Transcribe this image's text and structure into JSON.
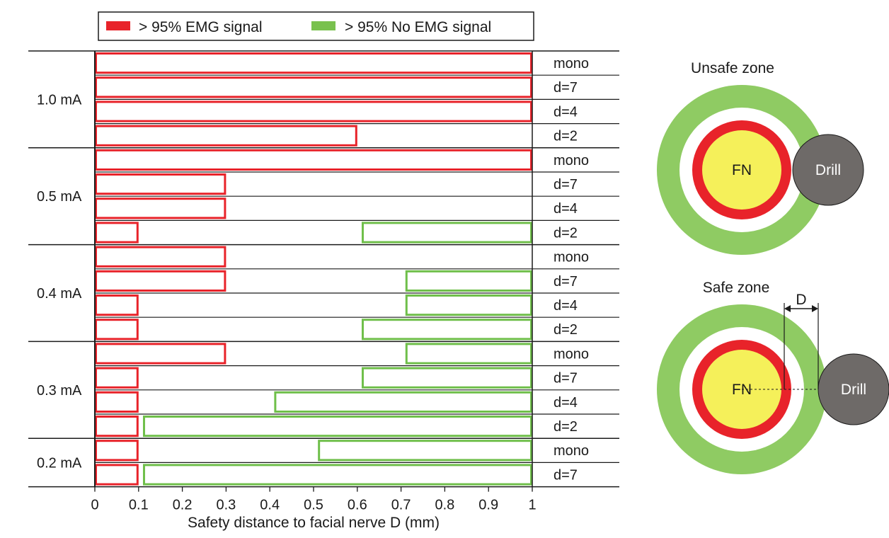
{
  "chart_data": {
    "type": "bar",
    "orientation": "horizontal",
    "xlabel": "Safety distance to facial nerve D (mm)",
    "xlim": [
      0,
      1
    ],
    "xticks": [
      "0",
      "0.1",
      "0.2",
      "0.3",
      "0.4",
      "0.5",
      "0.6",
      "0.7",
      "0.8",
      "0.9",
      "1"
    ],
    "legend": {
      "placement": "top",
      "entries": [
        {
          "label": "> 95% EMG signal",
          "color": "#e8232a"
        },
        {
          "label": "> 95% No EMG signal",
          "color": "#79c14e"
        }
      ]
    },
    "series_colors": {
      "emg": "#e8232a",
      "no_emg": "#6fbf4a"
    },
    "groups": [
      {
        "label": "1.0 mA",
        "rows": [
          {
            "label": "mono",
            "emg": 1.0,
            "no_emg_from": null
          },
          {
            "label": "d=7",
            "emg": 1.0,
            "no_emg_from": null
          },
          {
            "label": "d=4",
            "emg": 1.0,
            "no_emg_from": null
          },
          {
            "label": "d=2",
            "emg": 0.6,
            "no_emg_from": null
          }
        ]
      },
      {
        "label": "0.5 mA",
        "rows": [
          {
            "label": "mono",
            "emg": 1.0,
            "no_emg_from": null
          },
          {
            "label": "d=7",
            "emg": 0.3,
            "no_emg_from": null
          },
          {
            "label": "d=4",
            "emg": 0.3,
            "no_emg_from": null
          },
          {
            "label": "d=2",
            "emg": 0.1,
            "no_emg_from": 0.61
          }
        ]
      },
      {
        "label": "0.4 mA",
        "rows": [
          {
            "label": "mono",
            "emg": 0.3,
            "no_emg_from": null
          },
          {
            "label": "d=7",
            "emg": 0.3,
            "no_emg_from": 0.71
          },
          {
            "label": "d=4",
            "emg": 0.1,
            "no_emg_from": 0.71
          },
          {
            "label": "d=2",
            "emg": 0.1,
            "no_emg_from": 0.61
          }
        ]
      },
      {
        "label": "0.3 mA",
        "rows": [
          {
            "label": "mono",
            "emg": 0.3,
            "no_emg_from": 0.71
          },
          {
            "label": "d=7",
            "emg": 0.1,
            "no_emg_from": 0.61
          },
          {
            "label": "d=4",
            "emg": 0.1,
            "no_emg_from": 0.41
          },
          {
            "label": "d=2",
            "emg": 0.1,
            "no_emg_from": 0.11
          }
        ]
      },
      {
        "label": "0.2 mA",
        "rows": [
          {
            "label": "mono",
            "emg": 0.1,
            "no_emg_from": 0.51
          },
          {
            "label": "d=7",
            "emg": 0.1,
            "no_emg_from": 0.11
          }
        ]
      }
    ]
  },
  "diagrams": {
    "colors": {
      "outer": "#8fcb63",
      "inner_ring": "#e8232a",
      "nerve": "#f5f05a",
      "drill": "#6e6a68"
    },
    "unsafe": {
      "title": "Unsafe zone",
      "nerve_label": "FN",
      "drill_label": "Drill"
    },
    "safe": {
      "title": "Safe zone",
      "distance_label": "D",
      "nerve_label": "FN",
      "drill_label": "Drill"
    }
  }
}
